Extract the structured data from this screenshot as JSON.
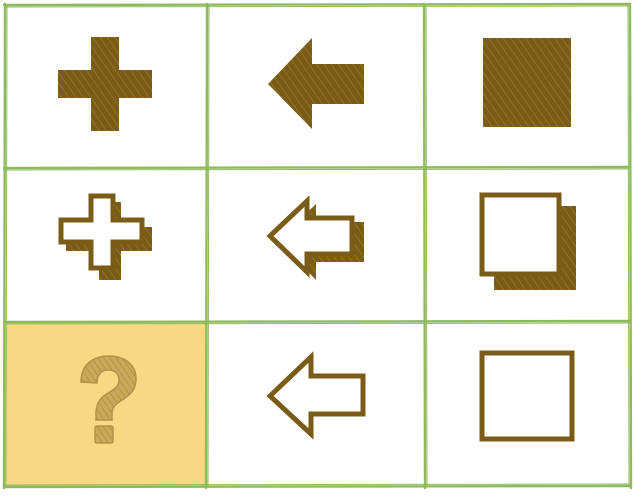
{
  "puzzle": {
    "missing_symbol": "?",
    "colors": {
      "grid_line": "#8fba5c",
      "shape_fill": "#7a5c18",
      "shape_hatch": "#a8872e",
      "highlight_cell": "#f6d982",
      "question_mark": "#b3914a",
      "background": "#ffffff"
    },
    "cells": [
      {
        "row": 1,
        "col": 1,
        "shape": "plus",
        "style": "solid"
      },
      {
        "row": 1,
        "col": 2,
        "shape": "arrow-left",
        "style": "solid"
      },
      {
        "row": 1,
        "col": 3,
        "shape": "square",
        "style": "solid"
      },
      {
        "row": 2,
        "col": 1,
        "shape": "plus",
        "style": "outline-with-shadow"
      },
      {
        "row": 2,
        "col": 2,
        "shape": "arrow-left",
        "style": "outline-with-shadow"
      },
      {
        "row": 2,
        "col": 3,
        "shape": "square",
        "style": "outline-with-shadow"
      },
      {
        "row": 3,
        "col": 1,
        "shape": "question",
        "style": "missing"
      },
      {
        "row": 3,
        "col": 2,
        "shape": "arrow-left",
        "style": "outline"
      },
      {
        "row": 3,
        "col": 3,
        "shape": "square",
        "style": "outline"
      }
    ]
  }
}
